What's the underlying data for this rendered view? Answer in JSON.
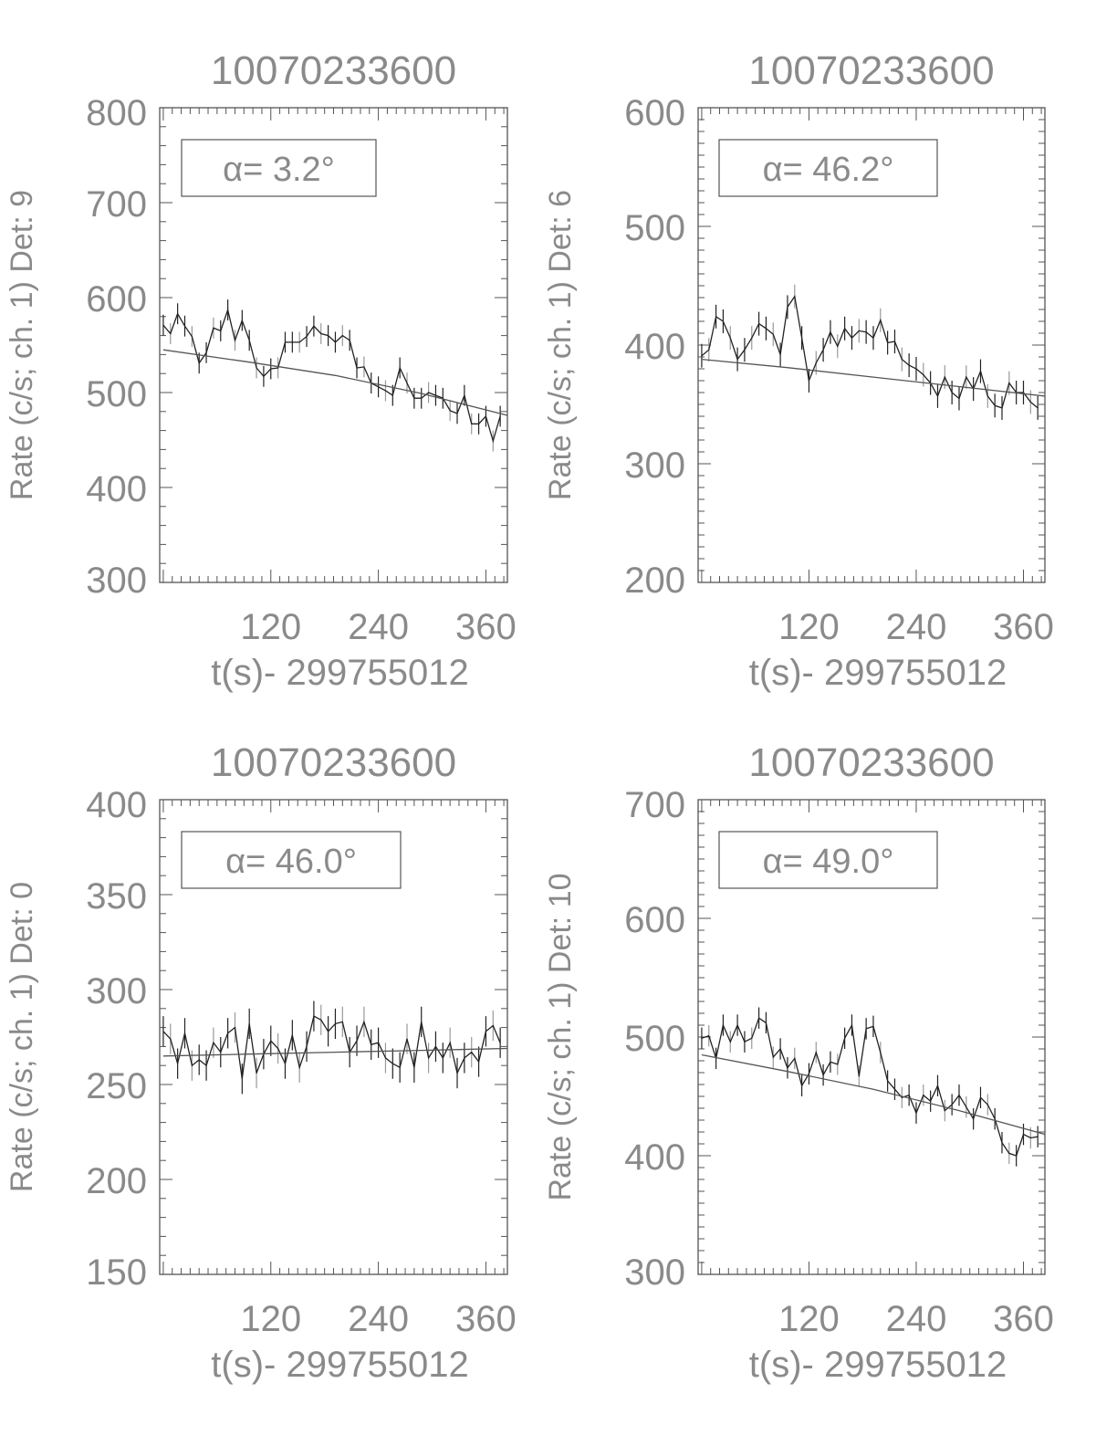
{
  "chart_data": [
    {
      "type": "line",
      "title": "10070233600",
      "xlabel": "t(s)- 299755012",
      "ylabel": "Rate (c/s; ch. 1) Det: 9",
      "annotation": "α= 3.2°",
      "xlim": [
        -4,
        384
      ],
      "ylim": [
        300,
        800
      ],
      "xticks": [
        "120",
        "240",
        "360"
      ],
      "yticks": [
        "300",
        "400",
        "500",
        "600",
        "700",
        "800"
      ],
      "x_start": 0,
      "x_step": 8,
      "error": 11,
      "values": [
        571,
        562,
        583,
        570,
        559,
        531,
        542,
        568,
        565,
        587,
        555,
        576,
        555,
        526,
        517,
        525,
        526,
        553,
        553,
        553,
        559,
        570,
        562,
        560,
        553,
        560,
        555,
        526,
        527,
        510,
        506,
        502,
        497,
        526,
        510,
        494,
        494,
        500,
        497,
        494,
        481,
        478,
        497,
        467,
        467,
        475,
        449,
        475
      ],
      "fit": {
        "x": [
          0,
          96,
          192,
          288,
          384
        ],
        "y": [
          545,
          532,
          518,
          499,
          476
        ]
      }
    },
    {
      "type": "line",
      "title": "10070233600",
      "xlabel": "t(s)- 299755012",
      "ylabel": "Rate (c/s; ch. 1) Det: 6",
      "annotation": "α= 46.2°",
      "xlim": [
        -4,
        384
      ],
      "ylim": [
        200,
        600
      ],
      "xticks": [
        "120",
        "240",
        "360"
      ],
      "yticks": [
        "200",
        "300",
        "400",
        "500",
        "600"
      ],
      "x_start": 0,
      "x_step": 8,
      "error": 10,
      "values": [
        391,
        396,
        424,
        420,
        406,
        388,
        396,
        406,
        418,
        414,
        409,
        392,
        432,
        441,
        406,
        370,
        385,
        396,
        411,
        399,
        414,
        406,
        412,
        411,
        406,
        421,
        402,
        403,
        388,
        383,
        380,
        375,
        368,
        357,
        373,
        360,
        355,
        373,
        363,
        378,
        357,
        349,
        347,
        368,
        360,
        360,
        352,
        347
      ],
      "fit": {
        "x": [
          0,
          96,
          192,
          288,
          384
        ],
        "y": [
          388,
          381,
          373,
          365,
          357
        ]
      }
    },
    {
      "type": "line",
      "title": "10070233600",
      "xlabel": "t(s)- 299755012",
      "ylabel": "Rate (c/s; ch. 1) Det: 0",
      "annotation": "α= 46.0°",
      "xlim": [
        -4,
        384
      ],
      "ylim": [
        150,
        400
      ],
      "xticks": [
        "120",
        "240",
        "360"
      ],
      "yticks": [
        "150",
        "200",
        "250",
        "300",
        "350",
        "400"
      ],
      "x_start": 0,
      "x_step": 8,
      "error": 8,
      "values": [
        278,
        274,
        261,
        277,
        260,
        263,
        260,
        272,
        267,
        277,
        280,
        253,
        282,
        256,
        266,
        273,
        269,
        261,
        276,
        259,
        270,
        286,
        284,
        278,
        282,
        283,
        267,
        273,
        283,
        271,
        272,
        264,
        261,
        259,
        274,
        259,
        283,
        264,
        270,
        264,
        272,
        256,
        264,
        267,
        262,
        278,
        281,
        272
      ],
      "fit": {
        "x": [
          0,
          96,
          192,
          288,
          384
        ],
        "y": [
          265,
          266,
          267,
          268,
          269
        ]
      }
    },
    {
      "type": "line",
      "title": "10070233600",
      "xlabel": "t(s)- 299755012",
      "ylabel": "Rate (c/s; ch. 1) Det: 10",
      "annotation": "α= 49.0°",
      "xlim": [
        -4,
        384
      ],
      "ylim": [
        300,
        700
      ],
      "xticks": [
        "120",
        "240",
        "360"
      ],
      "yticks": [
        "300",
        "400",
        "500",
        "600",
        "700"
      ],
      "x_start": 0,
      "x_step": 8,
      "error": 9,
      "values": [
        499,
        501,
        482,
        510,
        496,
        510,
        496,
        499,
        516,
        512,
        483,
        490,
        474,
        482,
        459,
        469,
        487,
        468,
        479,
        477,
        499,
        510,
        467,
        507,
        509,
        487,
        463,
        456,
        449,
        451,
        436,
        451,
        446,
        459,
        438,
        443,
        451,
        441,
        431,
        449,
        443,
        431,
        411,
        402,
        400,
        418,
        415,
        416
      ],
      "fit": {
        "x": [
          0,
          96,
          192,
          288,
          384
        ],
        "y": [
          485,
          471,
          456,
          438,
          418
        ]
      }
    }
  ],
  "colors": {
    "data": "#222222",
    "axis": "#555555",
    "text": "#8a8a8a",
    "errorbar": "#999999"
  }
}
